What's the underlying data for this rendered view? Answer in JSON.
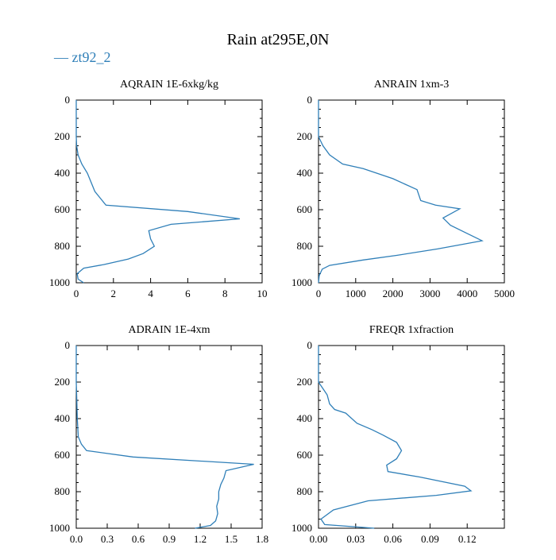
{
  "title": "Rain at295E,0N",
  "legend": {
    "label": "zt92_2",
    "color": "#2f7fb8",
    "placement": "top-left"
  },
  "chart_data": [
    {
      "type": "line",
      "title": "AQRAIN 1E-6xkg/kg",
      "xlim": [
        0,
        10
      ],
      "ylim": [
        1000,
        0
      ],
      "xticks": [
        "0",
        "2",
        "4",
        "6",
        "8",
        "10"
      ],
      "yticks": [
        "0",
        "200",
        "400",
        "600",
        "800",
        "1000"
      ],
      "series": [
        {
          "name": "zt92_2",
          "x": [
            0,
            0,
            0.02,
            0.1,
            0.3,
            0.6,
            0.8,
            1.0,
            1.6,
            6.0,
            8.8,
            5.1,
            3.9,
            4.0,
            4.2,
            3.6,
            2.8,
            1.5,
            0.4,
            0.05,
            0.1,
            0.4
          ],
          "y": [
            0,
            200,
            250,
            300,
            350,
            400,
            450,
            500,
            575,
            610,
            650,
            680,
            715,
            760,
            800,
            840,
            870,
            900,
            920,
            950,
            980,
            1000
          ]
        }
      ]
    },
    {
      "type": "line",
      "title": "ANRAIN 1xm-3",
      "xlim": [
        0,
        5000
      ],
      "ylim": [
        1000,
        0
      ],
      "xticks": [
        "0",
        "1000",
        "2000",
        "3000",
        "4000",
        "5000"
      ],
      "yticks": [
        "0",
        "200",
        "400",
        "600",
        "800",
        "1000"
      ],
      "series": [
        {
          "name": "zt92_2",
          "x": [
            0,
            0,
            120,
            300,
            650,
            1200,
            2000,
            2650,
            2750,
            3150,
            3800,
            3350,
            3550,
            4000,
            4400,
            3200,
            2100,
            1200,
            300,
            100,
            20,
            0
          ],
          "y": [
            0,
            200,
            250,
            300,
            350,
            375,
            430,
            490,
            550,
            575,
            595,
            645,
            685,
            730,
            770,
            815,
            850,
            875,
            905,
            925,
            960,
            1000
          ]
        }
      ]
    },
    {
      "type": "line",
      "title": "ADRAIN 1E-4xm",
      "xlim": [
        0,
        1.8
      ],
      "ylim": [
        1000,
        0
      ],
      "xticks": [
        "0.0",
        "0.3",
        "0.6",
        "0.9",
        "1.2",
        "1.5",
        "1.8"
      ],
      "yticks": [
        "0",
        "200",
        "400",
        "600",
        "800",
        "1000"
      ],
      "series": [
        {
          "name": "zt92_2",
          "x": [
            0,
            0,
            0.005,
            0.01,
            0.02,
            0.05,
            0.1,
            0.55,
            1.72,
            1.45,
            1.43,
            1.4,
            1.38,
            1.38,
            1.36,
            1.37,
            1.35,
            1.3,
            1.15
          ],
          "y": [
            0,
            200,
            300,
            400,
            500,
            540,
            575,
            610,
            650,
            685,
            725,
            760,
            800,
            840,
            880,
            920,
            960,
            985,
            1000
          ]
        }
      ]
    },
    {
      "type": "line",
      "title": "FREQR 1xfraction",
      "xlim": [
        0,
        0.15
      ],
      "ylim": [
        1000,
        0
      ],
      "xticks": [
        "0.00",
        "0.03",
        "0.06",
        "0.09",
        "0.12"
      ],
      "yticks": [
        "0",
        "200",
        "400",
        "600",
        "800",
        "1000"
      ],
      "series": [
        {
          "name": "zt92_2",
          "x": [
            0,
            0,
            0.005,
            0.007,
            0.009,
            0.013,
            0.022,
            0.031,
            0.043,
            0.052,
            0.063,
            0.067,
            0.063,
            0.055,
            0.056,
            0.082,
            0.118,
            0.123,
            0.095,
            0.04,
            0.012,
            0.002,
            0.005,
            0.045
          ],
          "y": [
            0,
            200,
            250,
            270,
            320,
            350,
            370,
            425,
            460,
            490,
            530,
            575,
            620,
            655,
            690,
            720,
            770,
            795,
            820,
            850,
            900,
            950,
            980,
            1000
          ]
        }
      ]
    }
  ]
}
